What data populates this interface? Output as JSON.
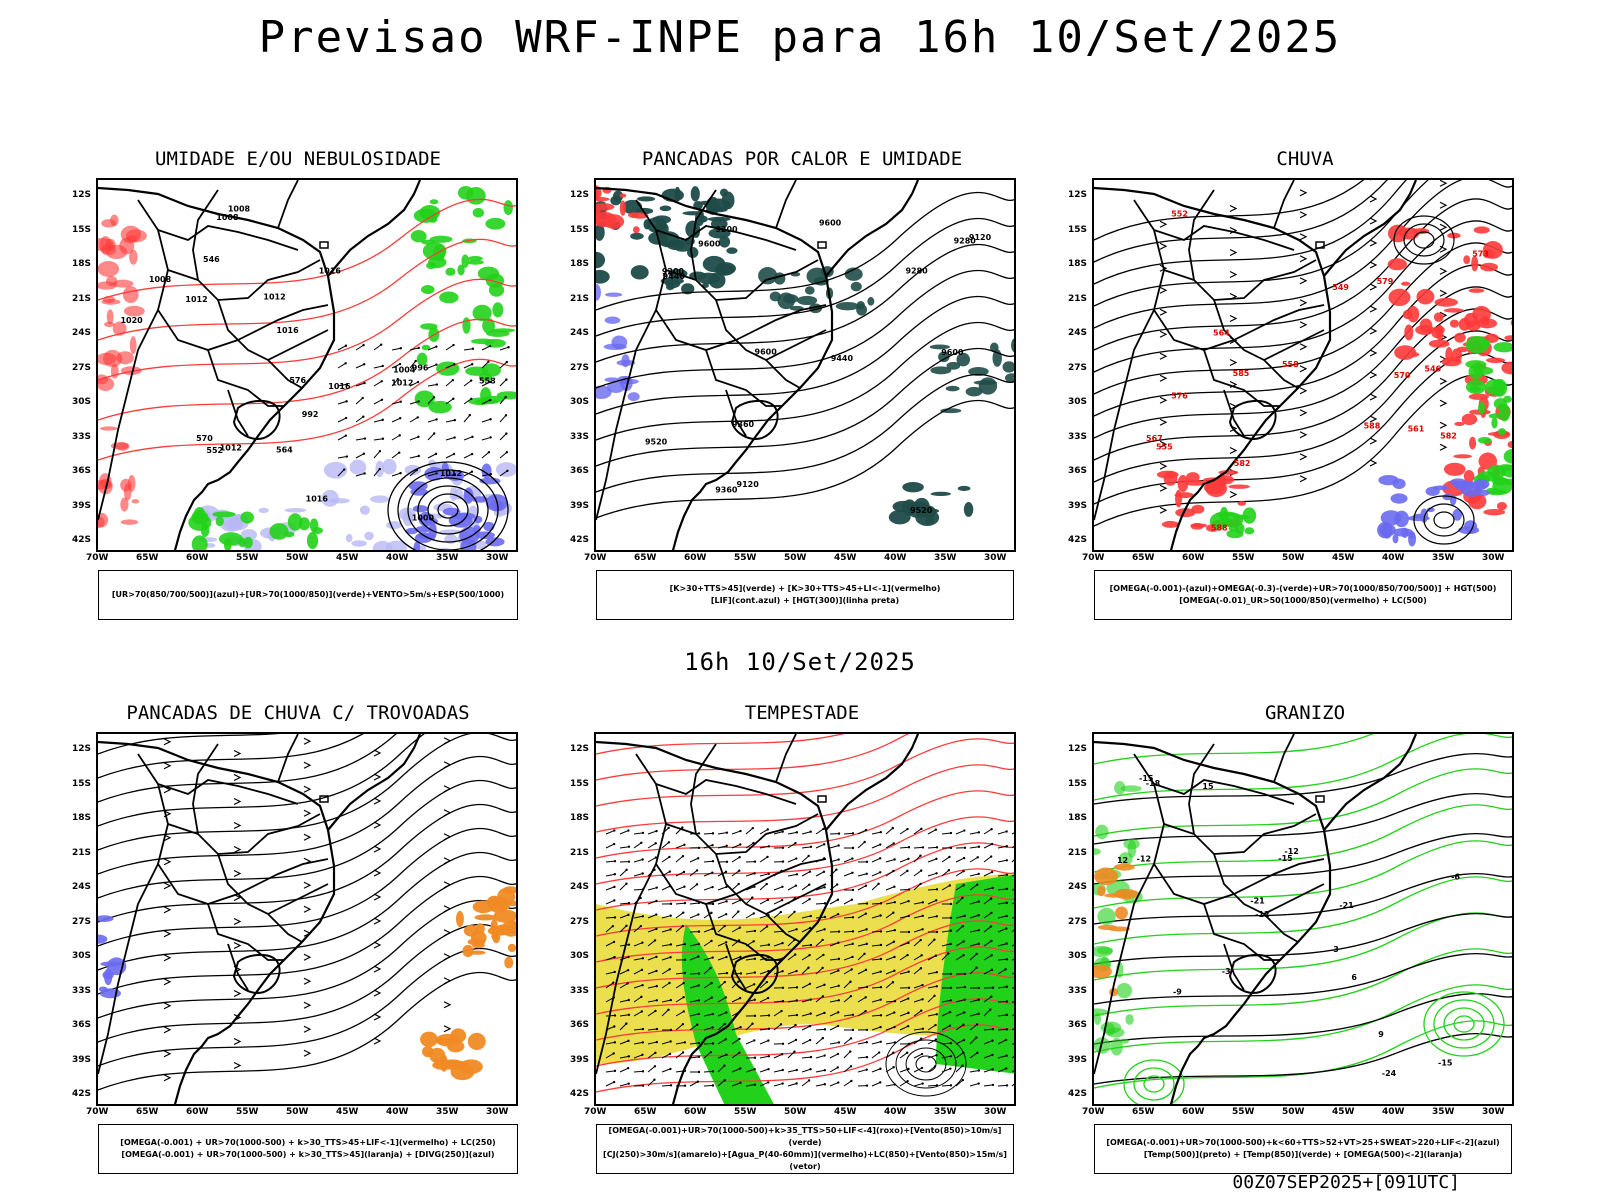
{
  "title": "Previsao WRF-INPE  para 16h 10/Set/2025",
  "middle_title": "16h 10/Set/2025",
  "footer": "00Z07SEP2025+[091UTC]",
  "lat_labels": [
    "12S",
    "15S",
    "18S",
    "21S",
    "24S",
    "27S",
    "30S",
    "33S",
    "36S",
    "39S",
    "42S"
  ],
  "lon_labels": [
    "70W",
    "65W",
    "60W",
    "55W",
    "50W",
    "45W",
    "40W",
    "35W",
    "30W"
  ],
  "panels": [
    {
      "title": "UMIDADE E/OU NEBULOSIDADE",
      "legend_lines": [
        "[UR>70(850/700/500)](azul)+[UR>70(1000/850)](verde)+VENTO>5m/s+ESP(500/1000)"
      ],
      "contour_labels": [
        "1012",
        "1008",
        "1016",
        "1008",
        "1012",
        "1016",
        "1020",
        "1016",
        "1012",
        "1012",
        "1008",
        "1004",
        "1000",
        "996",
        "992",
        "1016",
        "1012",
        "576",
        "570",
        "564",
        "558",
        "552",
        "546"
      ]
    },
    {
      "title": "PANCADAS POR CALOR E UMIDADE",
      "legend_lines": [
        "[K>30+TTS>45](verde) + [K>30+TTS>45+LI<-1](vermelho)",
        "[LIF](cont.azul) + [HGT(300)](linha preta)"
      ],
      "contour_labels": [
        "9600",
        "9600",
        "9600",
        "9520",
        "9520",
        "9440",
        "9440",
        "9360",
        "9360",
        "9280",
        "9280",
        "9200",
        "9200",
        "9120",
        "9120",
        "9600"
      ]
    },
    {
      "title": "CHUVA",
      "legend_lines": [
        "[OMEGA(-0.001)-(azul)+OMEGA(-0.3)-(verde)+UR>70(1000/850/700/500)] + HGT(500)",
        "[OMEGA(-0.01)_UR>50(1000/850)(vermelho) + LC(500)"
      ],
      "contour_labels": [
        "588",
        "588",
        "585",
        "582",
        "582",
        "579",
        "576",
        "573",
        "570",
        "567",
        "564",
        "561",
        "558",
        "555",
        "552",
        "549",
        "546"
      ]
    },
    {
      "title": "PANCADAS DE CHUVA C/ TROVOADAS",
      "legend_lines": [
        "[OMEGA(-0.001) + UR>70(1000-500) + k>30_TTS>45+LIF<-1](vermelho) + LC(250)",
        "[OMEGA(-0.001) + UR>70(1000-500) + k>30_TTS>45](laranja) + [DIVG(250)](azul)"
      ],
      "contour_labels": []
    },
    {
      "title": "TEMPESTADE",
      "legend_lines": [
        "[OMEGA(-0.001)+UR>70(1000-500)+k>35_TTS>50+LIF<-4](roxo)+[Vento(850)>10m/s](verde)",
        "[CJ(250)>30m/s](amarelo)+[Agua_P(40-60mm)](vermelho)+LC(850)+[Vento(850)>15m/s](vetor)"
      ],
      "contour_labels": []
    },
    {
      "title": "GRANIZO",
      "legend_lines": [
        "[OMEGA(-0.001)+UR>70(1000-500)+k<60+TTS>52+VT>25+SWEAT>220+LIF<-2](azul)",
        "[Temp(500)](preto) + [Temp(850)](verde) + [OMEGA(500)<-2](laranja)"
      ],
      "contour_labels": [
        "-12",
        "-12",
        "-9",
        "-6",
        "-3",
        "-12",
        "-15",
        "-15",
        "-18",
        "-21",
        "-24",
        "-21",
        "-15",
        "3",
        "6",
        "9",
        "12",
        "15"
      ]
    }
  ],
  "colors": {
    "blue": "#6a6af0",
    "lightblue": "#b8b8f5",
    "green": "#22d11a",
    "red": "#ff3a3a",
    "darkteal": "#1f4b48",
    "yellow": "#e9dc3a",
    "orange": "#f08a24"
  }
}
